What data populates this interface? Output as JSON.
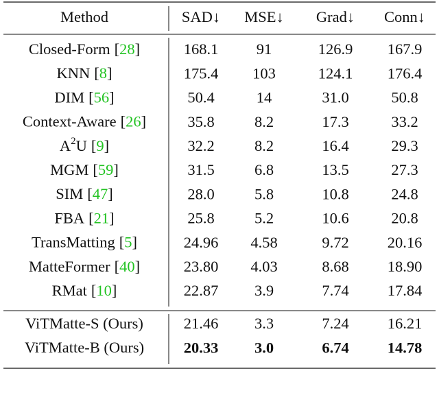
{
  "table": {
    "header": [
      "Method",
      "SAD↓",
      "MSE↓",
      "Grad↓",
      "Conn↓"
    ],
    "cite_brackets": [
      "[",
      "]"
    ],
    "groups": [
      [
        {
          "method": "Closed-Form",
          "ref": "28",
          "values": [
            "168.1",
            "91",
            "126.9",
            "167.9"
          ]
        },
        {
          "method": "KNN",
          "ref": "8",
          "values": [
            "175.4",
            "103",
            "124.1",
            "176.4"
          ]
        },
        {
          "method": "DIM",
          "ref": "56",
          "values": [
            "50.4",
            "14",
            "31.0",
            "50.8"
          ]
        },
        {
          "method": "Context-Aware",
          "ref": "26",
          "values": [
            "35.8",
            "8.2",
            "17.3",
            "33.2"
          ]
        },
        {
          "method": "A",
          "method_sup": "2",
          "method_rest": "U",
          "ref": "9",
          "values": [
            "32.2",
            "8.2",
            "16.4",
            "29.3"
          ]
        },
        {
          "method": "MGM",
          "ref": "59",
          "values": [
            "31.5",
            "6.8",
            "13.5",
            "27.3"
          ]
        },
        {
          "method": "SIM",
          "ref": "47",
          "values": [
            "28.0",
            "5.8",
            "10.8",
            "24.8"
          ]
        },
        {
          "method": "FBA",
          "ref": "21",
          "values": [
            "25.8",
            "5.2",
            "10.6",
            "20.8"
          ]
        },
        {
          "method": "TransMatting",
          "ref": "5",
          "values": [
            "24.96",
            "4.58",
            "9.72",
            "20.16"
          ]
        },
        {
          "method": "MatteFormer",
          "ref": "40",
          "values": [
            "23.80",
            "4.03",
            "8.68",
            "18.90"
          ]
        },
        {
          "method": "RMat",
          "ref": "10",
          "values": [
            "22.87",
            "3.9",
            "7.74",
            "17.84"
          ]
        }
      ],
      [
        {
          "method": "ViTMatte-S (Ours)",
          "values": [
            "21.46",
            "3.3",
            "7.24",
            "16.21"
          ]
        },
        {
          "method": "ViTMatte-B (Ours)",
          "values": [
            "20.33",
            "3.0",
            "6.74",
            "14.78"
          ],
          "bold": true
        }
      ]
    ]
  }
}
